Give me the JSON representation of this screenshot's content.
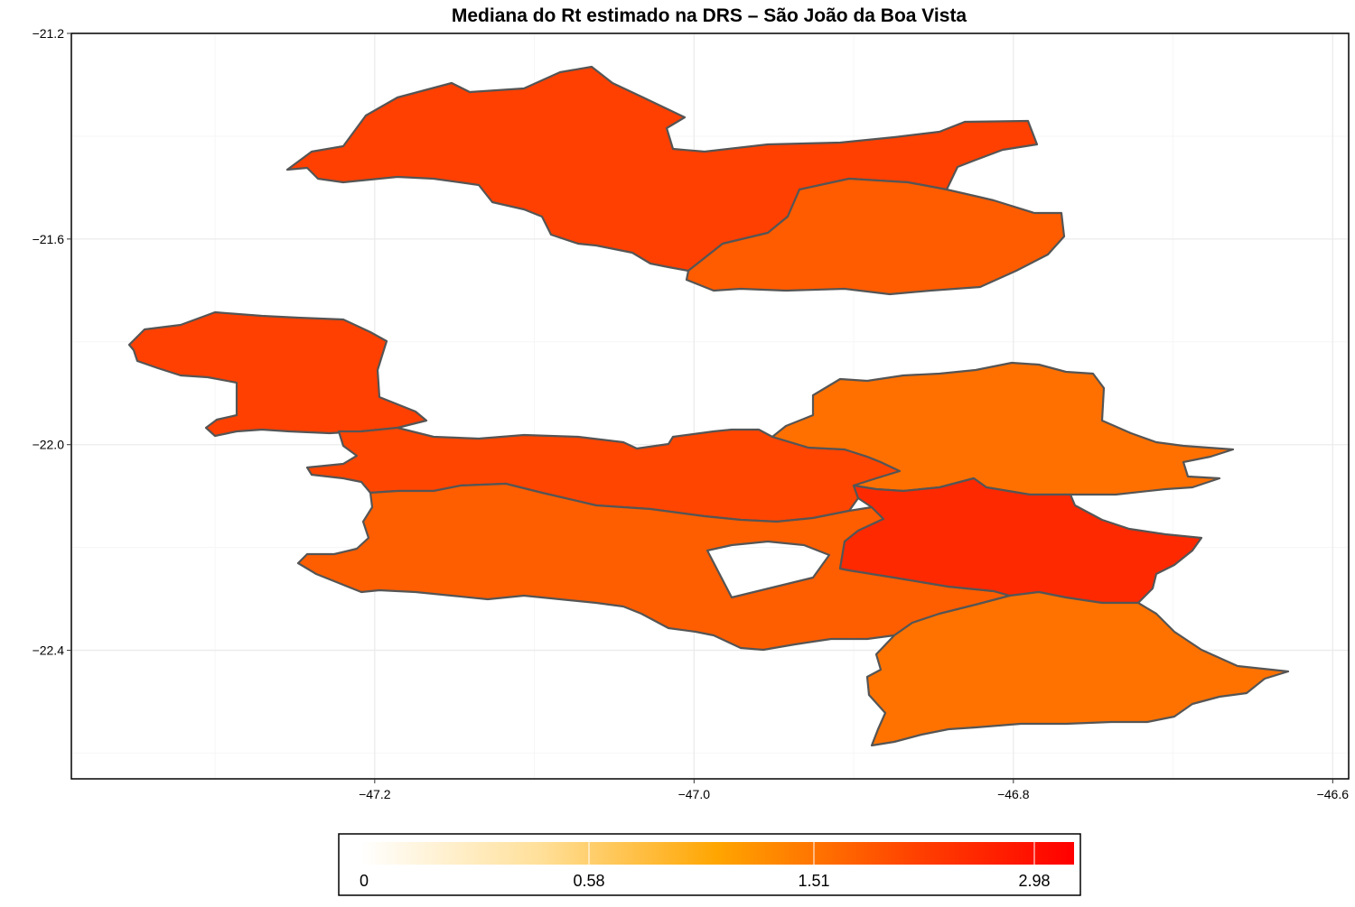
{
  "title": "Mediana do Rt estimado na DRS – São João da Boa Vista",
  "chart_data": {
    "type": "choropleth",
    "title": "Mediana do Rt estimado na DRS – São João da Boa Vista",
    "x_ticks": [
      "-47.2",
      "-47.0",
      "-46.8",
      "-46.6"
    ],
    "y_ticks": [
      "-21.2",
      "-21.6",
      "-22.0",
      "-22.4"
    ],
    "xlim": [
      -47.39,
      -46.59
    ],
    "ylim": [
      -22.65,
      -21.2
    ],
    "grid": true,
    "legend_position": "bottom",
    "legend": {
      "type": "colorbar",
      "labels": [
        "0",
        "0.58",
        "1.51",
        "2.98"
      ],
      "colors": [
        "#ffffff",
        "#ffe09a",
        "#ffa500",
        "#ff4000",
        "#ff0000"
      ]
    },
    "regions": [
      {
        "id": "north-1",
        "fill": "#ff4000"
      },
      {
        "id": "north-2",
        "fill": "#ff5c00"
      },
      {
        "id": "west",
        "fill": "#ff4000"
      },
      {
        "id": "center-band",
        "fill": "#ff4500"
      },
      {
        "id": "center-east",
        "fill": "#ff7000"
      },
      {
        "id": "south-band",
        "fill": "#ff5e00"
      },
      {
        "id": "east-mid",
        "fill": "#ff2900"
      },
      {
        "id": "south-east",
        "fill": "#ff7200"
      }
    ]
  }
}
